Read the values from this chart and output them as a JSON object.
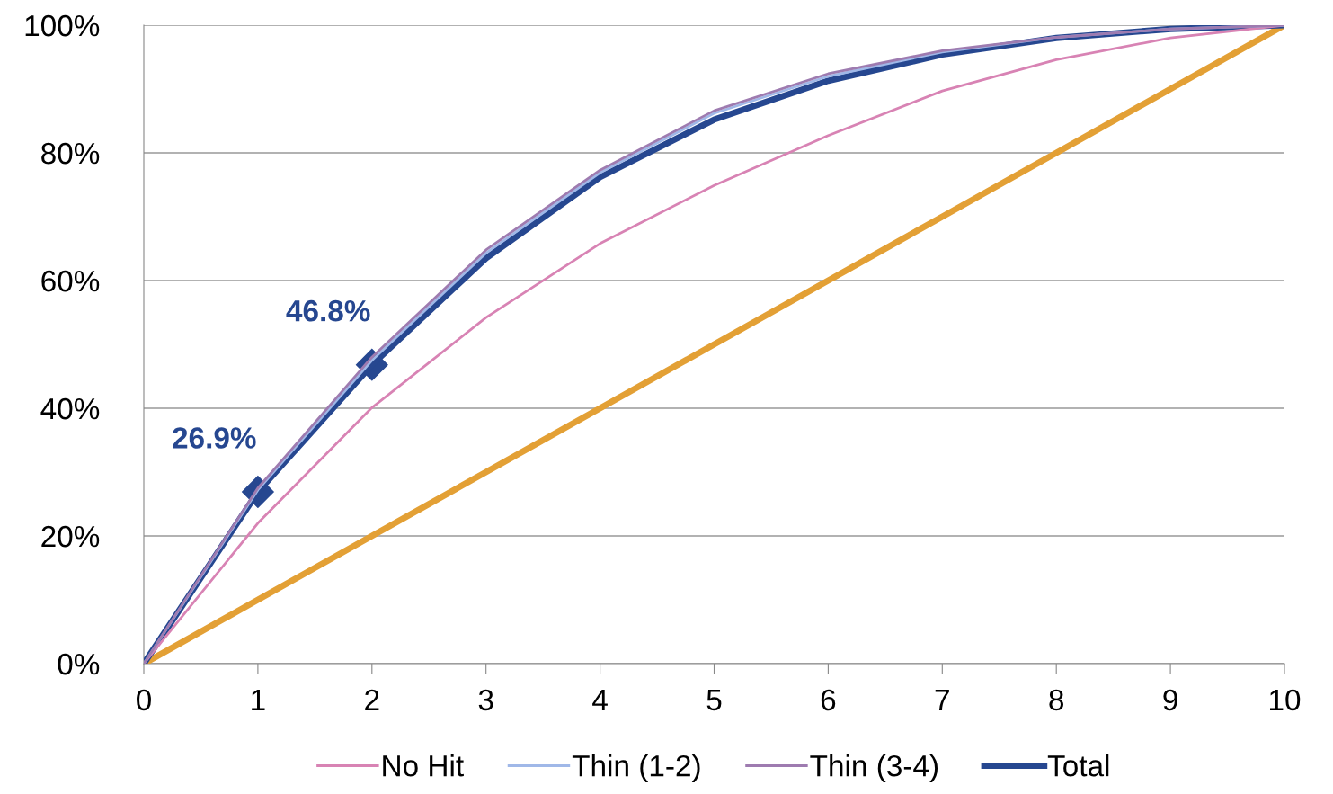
{
  "chart_data": {
    "type": "line",
    "x": [
      0,
      1,
      2,
      3,
      4,
      5,
      6,
      7,
      8,
      9,
      10
    ],
    "series": [
      {
        "name": "No Hit",
        "color": "#d883b4",
        "values": [
          0,
          22.0,
          40.1,
          54.2,
          65.8,
          74.9,
          82.7,
          89.7,
          94.6,
          98.0,
          100
        ]
      },
      {
        "name": "Thin (1-2)",
        "color": "#a0b8e8",
        "values": [
          0,
          27.2,
          47.5,
          64.3,
          76.9,
          86.2,
          92.0,
          95.8,
          98.1,
          99.4,
          100
        ]
      },
      {
        "name": "Thin (3-4)",
        "color": "#9e7bb0",
        "values": [
          0,
          27.5,
          48.0,
          64.8,
          77.3,
          86.6,
          92.4,
          96.0,
          98.1,
          99.4,
          100
        ]
      },
      {
        "name": "Total",
        "color": "#264790",
        "values": [
          0,
          26.9,
          46.8,
          63.5,
          76.2,
          85.2,
          91.3,
          95.4,
          98.0,
          99.4,
          100
        ]
      },
      {
        "color": "#e3a035",
        "values": [
          0,
          10,
          20,
          30,
          40,
          50,
          60,
          70,
          80,
          90,
          100
        ]
      },
      {
        "type": "scatter",
        "color": "#264790",
        "marker": "diamond",
        "values": [
          null,
          26.9,
          46.8,
          null,
          null,
          null,
          null,
          null,
          null,
          null,
          null
        ],
        "value_labels": [
          null,
          "26.9%",
          "46.8%",
          null,
          null,
          null,
          null,
          null,
          null,
          null,
          null
        ]
      }
    ],
    "xlim": [
      0,
      10
    ],
    "xticks": [
      0,
      1,
      2,
      3,
      4,
      5,
      6,
      7,
      8,
      9,
      10
    ],
    "ylim": [
      0,
      100
    ],
    "yticks": [
      {
        "value": 0,
        "label": "0%"
      },
      {
        "value": 20,
        "label": "20%"
      },
      {
        "value": 40,
        "label": "40%"
      },
      {
        "value": 60,
        "label": "60%"
      },
      {
        "value": 80,
        "label": "80%"
      },
      {
        "value": 100,
        "label": "100%"
      }
    ],
    "grid": "y",
    "legend": "bottom",
    "marker": "none",
    "line_style": "solid"
  }
}
